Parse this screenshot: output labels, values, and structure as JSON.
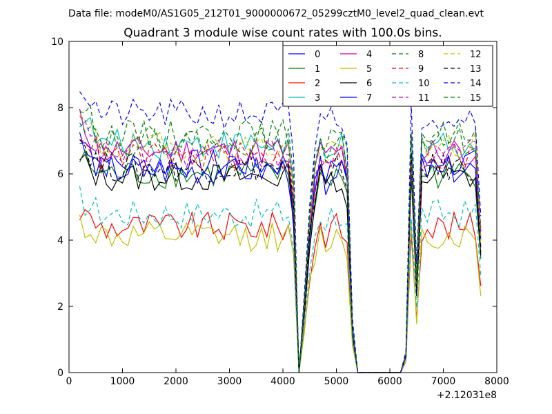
{
  "header": {
    "data_file": "Data file: modeM0/AS1G05_212T01_9000000672_05299cztM0_level2_quad_clean.evt"
  },
  "chart_data": {
    "type": "line",
    "title": "Quadrant 3 module wise count rates with 100.0s bins.",
    "xlabel": "",
    "ylabel": "",
    "x_offset_label": "+2.12031e8",
    "xlim": [
      0,
      8000
    ],
    "ylim": [
      0,
      10
    ],
    "x_ticks": [
      0,
      1000,
      2000,
      3000,
      4000,
      5000,
      6000,
      7000,
      8000
    ],
    "y_ticks": [
      0,
      2,
      4,
      6,
      8,
      10
    ],
    "grid": false,
    "legend_position": "top-right",
    "legend_columns": 4,
    "x": [
      200,
      300,
      400,
      500,
      600,
      700,
      800,
      900,
      1000,
      1100,
      1200,
      1300,
      1400,
      1500,
      1600,
      1700,
      1800,
      1900,
      2000,
      2100,
      2200,
      2300,
      2400,
      2500,
      2600,
      2700,
      2800,
      2900,
      3000,
      3100,
      3200,
      3300,
      3400,
      3500,
      3600,
      3700,
      3800,
      3900,
      4000,
      4100,
      4200,
      4300,
      4400,
      4500,
      4600,
      4700,
      4800,
      4900,
      5000,
      5100,
      5200,
      5300,
      5400,
      5500,
      5600,
      5700,
      5800,
      5900,
      6000,
      6100,
      6200,
      6300,
      6400,
      6500,
      6600,
      6700,
      6800,
      6900,
      7000,
      7100,
      7200,
      7300,
      7400,
      7500,
      7600,
      7700
    ],
    "series": [
      {
        "name": "0",
        "color": "#0000ff",
        "dash": "solid",
        "level": 6.3
      },
      {
        "name": "1",
        "color": "#008000",
        "dash": "solid",
        "level": 6.0
      },
      {
        "name": "2",
        "color": "#ff0000",
        "dash": "solid",
        "level": 4.4
      },
      {
        "name": "3",
        "color": "#00bfbf",
        "dash": "solid",
        "level": 6.9
      },
      {
        "name": "4",
        "color": "#bf00bf",
        "dash": "solid",
        "level": 6.7
      },
      {
        "name": "5",
        "color": "#bfbf00",
        "dash": "solid",
        "level": 4.1
      },
      {
        "name": "6",
        "color": "#000000",
        "dash": "solid",
        "level": 5.9
      },
      {
        "name": "7",
        "color": "#0000ff",
        "dash": "solid",
        "level": 6.1
      },
      {
        "name": "8",
        "color": "#008000",
        "dash": "dashed",
        "level": 7.2
      },
      {
        "name": "9",
        "color": "#ff0000",
        "dash": "dashed",
        "level": 6.5
      },
      {
        "name": "10",
        "color": "#00bfbf",
        "dash": "dashed",
        "level": 4.8
      },
      {
        "name": "11",
        "color": "#bf00bf",
        "dash": "dashed",
        "level": 6.6
      },
      {
        "name": "12",
        "color": "#bfbf00",
        "dash": "dashed",
        "level": 6.8
      },
      {
        "name": "13",
        "color": "#000000",
        "dash": "dashed",
        "level": 6.2
      },
      {
        "name": "14",
        "color": "#0000ff",
        "dash": "dashed",
        "level": 7.8
      },
      {
        "name": "15",
        "color": "#008000",
        "dash": "dashed",
        "level": 7.0
      }
    ]
  }
}
